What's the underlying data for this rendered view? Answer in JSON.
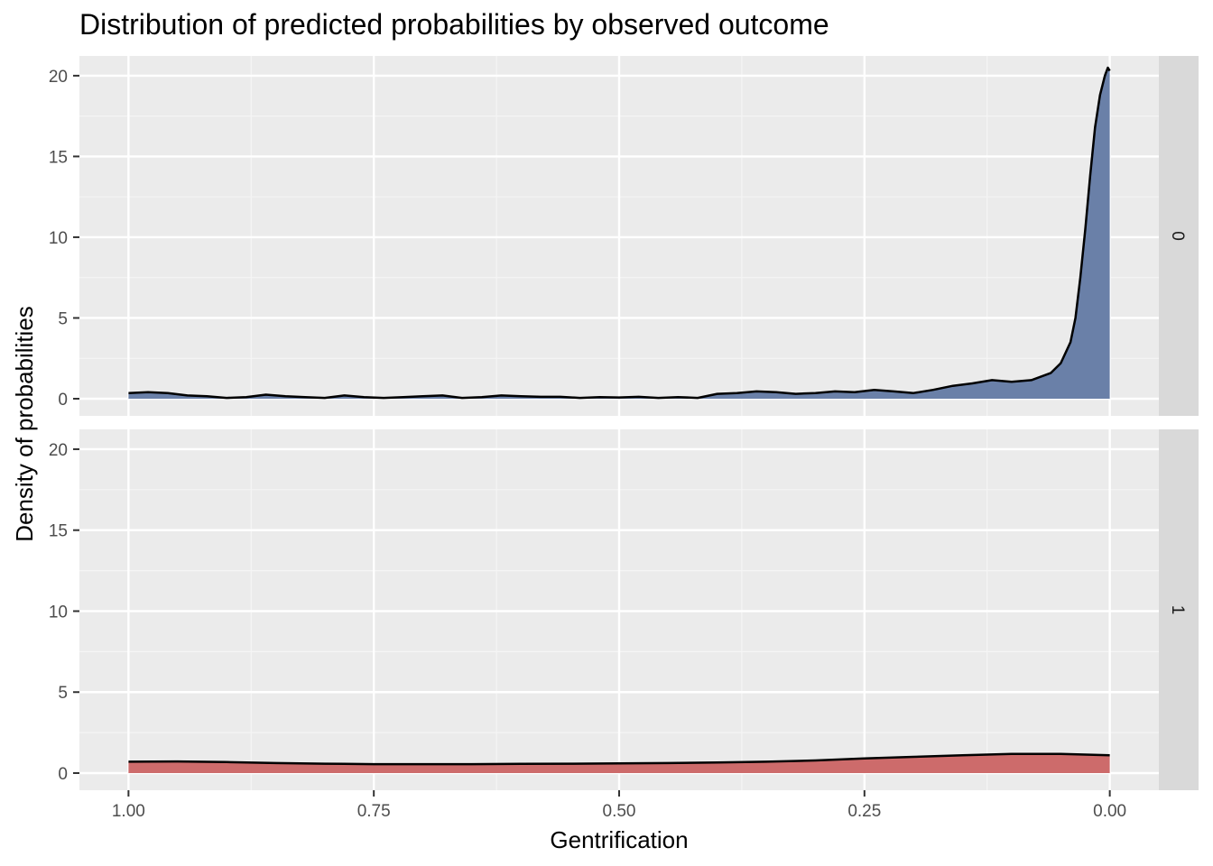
{
  "chart_data": {
    "type": "area",
    "title": "Distribution of predicted probabilities by observed outcome",
    "xlabel": "Gentrification",
    "ylabel": "Density of probabilities",
    "x_reversed": true,
    "xlim": [
      1.0,
      0.0
    ],
    "ylim": [
      0,
      21
    ],
    "x_ticks": [
      "1.00",
      "0.75",
      "0.50",
      "0.25",
      "0.00"
    ],
    "y_ticks": [
      "0",
      "5",
      "10",
      "15",
      "20"
    ],
    "grid": true,
    "facets": [
      "0",
      "1"
    ],
    "series": [
      {
        "facet": "0",
        "color": "#6a80a8",
        "x": [
          1.0,
          0.98,
          0.96,
          0.94,
          0.92,
          0.9,
          0.88,
          0.86,
          0.84,
          0.82,
          0.8,
          0.78,
          0.76,
          0.74,
          0.72,
          0.7,
          0.68,
          0.66,
          0.64,
          0.62,
          0.6,
          0.58,
          0.56,
          0.54,
          0.52,
          0.5,
          0.48,
          0.46,
          0.44,
          0.42,
          0.4,
          0.38,
          0.36,
          0.34,
          0.32,
          0.3,
          0.28,
          0.26,
          0.24,
          0.22,
          0.2,
          0.18,
          0.16,
          0.14,
          0.12,
          0.1,
          0.08,
          0.06,
          0.05,
          0.04,
          0.035,
          0.03,
          0.025,
          0.02,
          0.015,
          0.01,
          0.005,
          0.002,
          0.0
        ],
        "y": [
          0.35,
          0.4,
          0.35,
          0.2,
          0.15,
          0.05,
          0.1,
          0.25,
          0.15,
          0.1,
          0.05,
          0.2,
          0.1,
          0.05,
          0.1,
          0.15,
          0.2,
          0.05,
          0.1,
          0.2,
          0.15,
          0.12,
          0.12,
          0.05,
          0.1,
          0.08,
          0.12,
          0.05,
          0.1,
          0.05,
          0.3,
          0.35,
          0.45,
          0.4,
          0.3,
          0.35,
          0.45,
          0.4,
          0.55,
          0.45,
          0.35,
          0.55,
          0.8,
          0.95,
          1.15,
          1.05,
          1.15,
          1.6,
          2.2,
          3.5,
          5.0,
          7.5,
          10.5,
          13.8,
          16.8,
          18.8,
          20.0,
          20.5,
          20.3
        ]
      },
      {
        "facet": "1",
        "color": "#cd6b6b",
        "x": [
          1.0,
          0.95,
          0.9,
          0.85,
          0.8,
          0.75,
          0.7,
          0.65,
          0.6,
          0.55,
          0.5,
          0.45,
          0.4,
          0.35,
          0.3,
          0.25,
          0.2,
          0.15,
          0.1,
          0.05,
          0.0
        ],
        "y": [
          0.7,
          0.72,
          0.68,
          0.62,
          0.58,
          0.55,
          0.55,
          0.55,
          0.57,
          0.58,
          0.6,
          0.62,
          0.65,
          0.7,
          0.78,
          0.9,
          1.0,
          1.1,
          1.18,
          1.18,
          1.1
        ]
      }
    ]
  },
  "strip_bg": "#d9d9d9",
  "panel_bg": "#ebebeb"
}
